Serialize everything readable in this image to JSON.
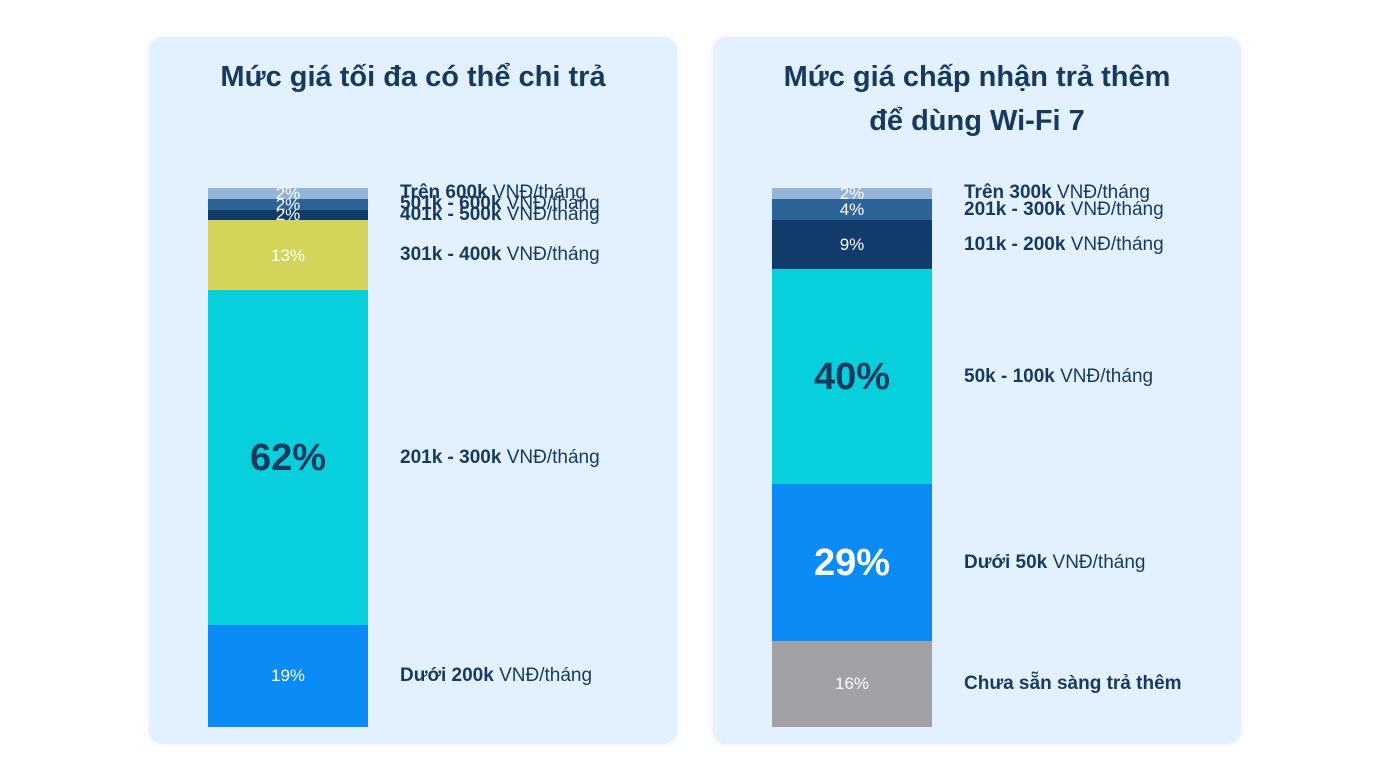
{
  "chart_data": [
    {
      "type": "bar",
      "title": "Mức giá tối đa có thể chi trả",
      "stacked": true,
      "unit": "%",
      "categories": [
        {
          "label_bold": "Dưới 200k",
          "label_rest": " VNĐ/tháng",
          "value": 19,
          "value_label": "19%",
          "color": "#0a8bf6",
          "label_color": "#ffffff"
        },
        {
          "label_bold": "201k - 300k",
          "label_rest": " VNĐ/tháng",
          "value": 62,
          "value_label": "62%",
          "color": "#07cfdc",
          "label_color": "#163a5f"
        },
        {
          "label_bold": "301k - 400k",
          "label_rest": " VNĐ/tháng",
          "value": 13,
          "value_label": "13%",
          "color": "#d3d45a",
          "label_color": "#ffffff"
        },
        {
          "label_bold": "401k - 500k",
          "label_rest": " VNĐ/tháng",
          "value": 2,
          "value_label": "2%",
          "color": "#113b6a",
          "label_color": "#ffffff"
        },
        {
          "label_bold": "501k - 600k",
          "label_rest": " VNĐ/tháng",
          "value": 2,
          "value_label": "2%",
          "color": "#2d6497",
          "label_color": "#ffffff"
        },
        {
          "label_bold": "Trên 600k",
          "label_rest": " VNĐ/tháng",
          "value": 2,
          "value_label": "2%",
          "color": "#93b4d6",
          "label_color": "#ffffff"
        }
      ]
    },
    {
      "type": "bar",
      "title": "Mức giá chấp nhận trả thêm\nđể dùng Wi-Fi 7",
      "stacked": true,
      "unit": "%",
      "categories": [
        {
          "label_bold": "Chưa sẵn sàng trả thêm",
          "label_rest": "",
          "value": 16,
          "value_label": "16%",
          "color": "#a2a2a6",
          "label_color": "#ffffff"
        },
        {
          "label_bold": "Dưới 50k",
          "label_rest": " VNĐ/tháng",
          "value": 29,
          "value_label": "29%",
          "color": "#0a8bf6",
          "label_color": "#ffffff"
        },
        {
          "label_bold": "50k - 100k",
          "label_rest": " VNĐ/tháng",
          "value": 40,
          "value_label": "40%",
          "color": "#07cfdc",
          "label_color": "#163a5f"
        },
        {
          "label_bold": "101k - 200k",
          "label_rest": " VNĐ/tháng",
          "value": 9,
          "value_label": "9%",
          "color": "#113b6a",
          "label_color": "#ffffff"
        },
        {
          "label_bold": "201k - 300k",
          "label_rest": " VNĐ/tháng",
          "value": 4,
          "value_label": "4%",
          "color": "#2d6497",
          "label_color": "#ffffff"
        },
        {
          "label_bold": "Trên 300k",
          "label_rest": " VNĐ/tháng",
          "value": 2,
          "value_label": "2%",
          "color": "#93b4d6",
          "label_color": "#ffffff"
        }
      ]
    }
  ]
}
